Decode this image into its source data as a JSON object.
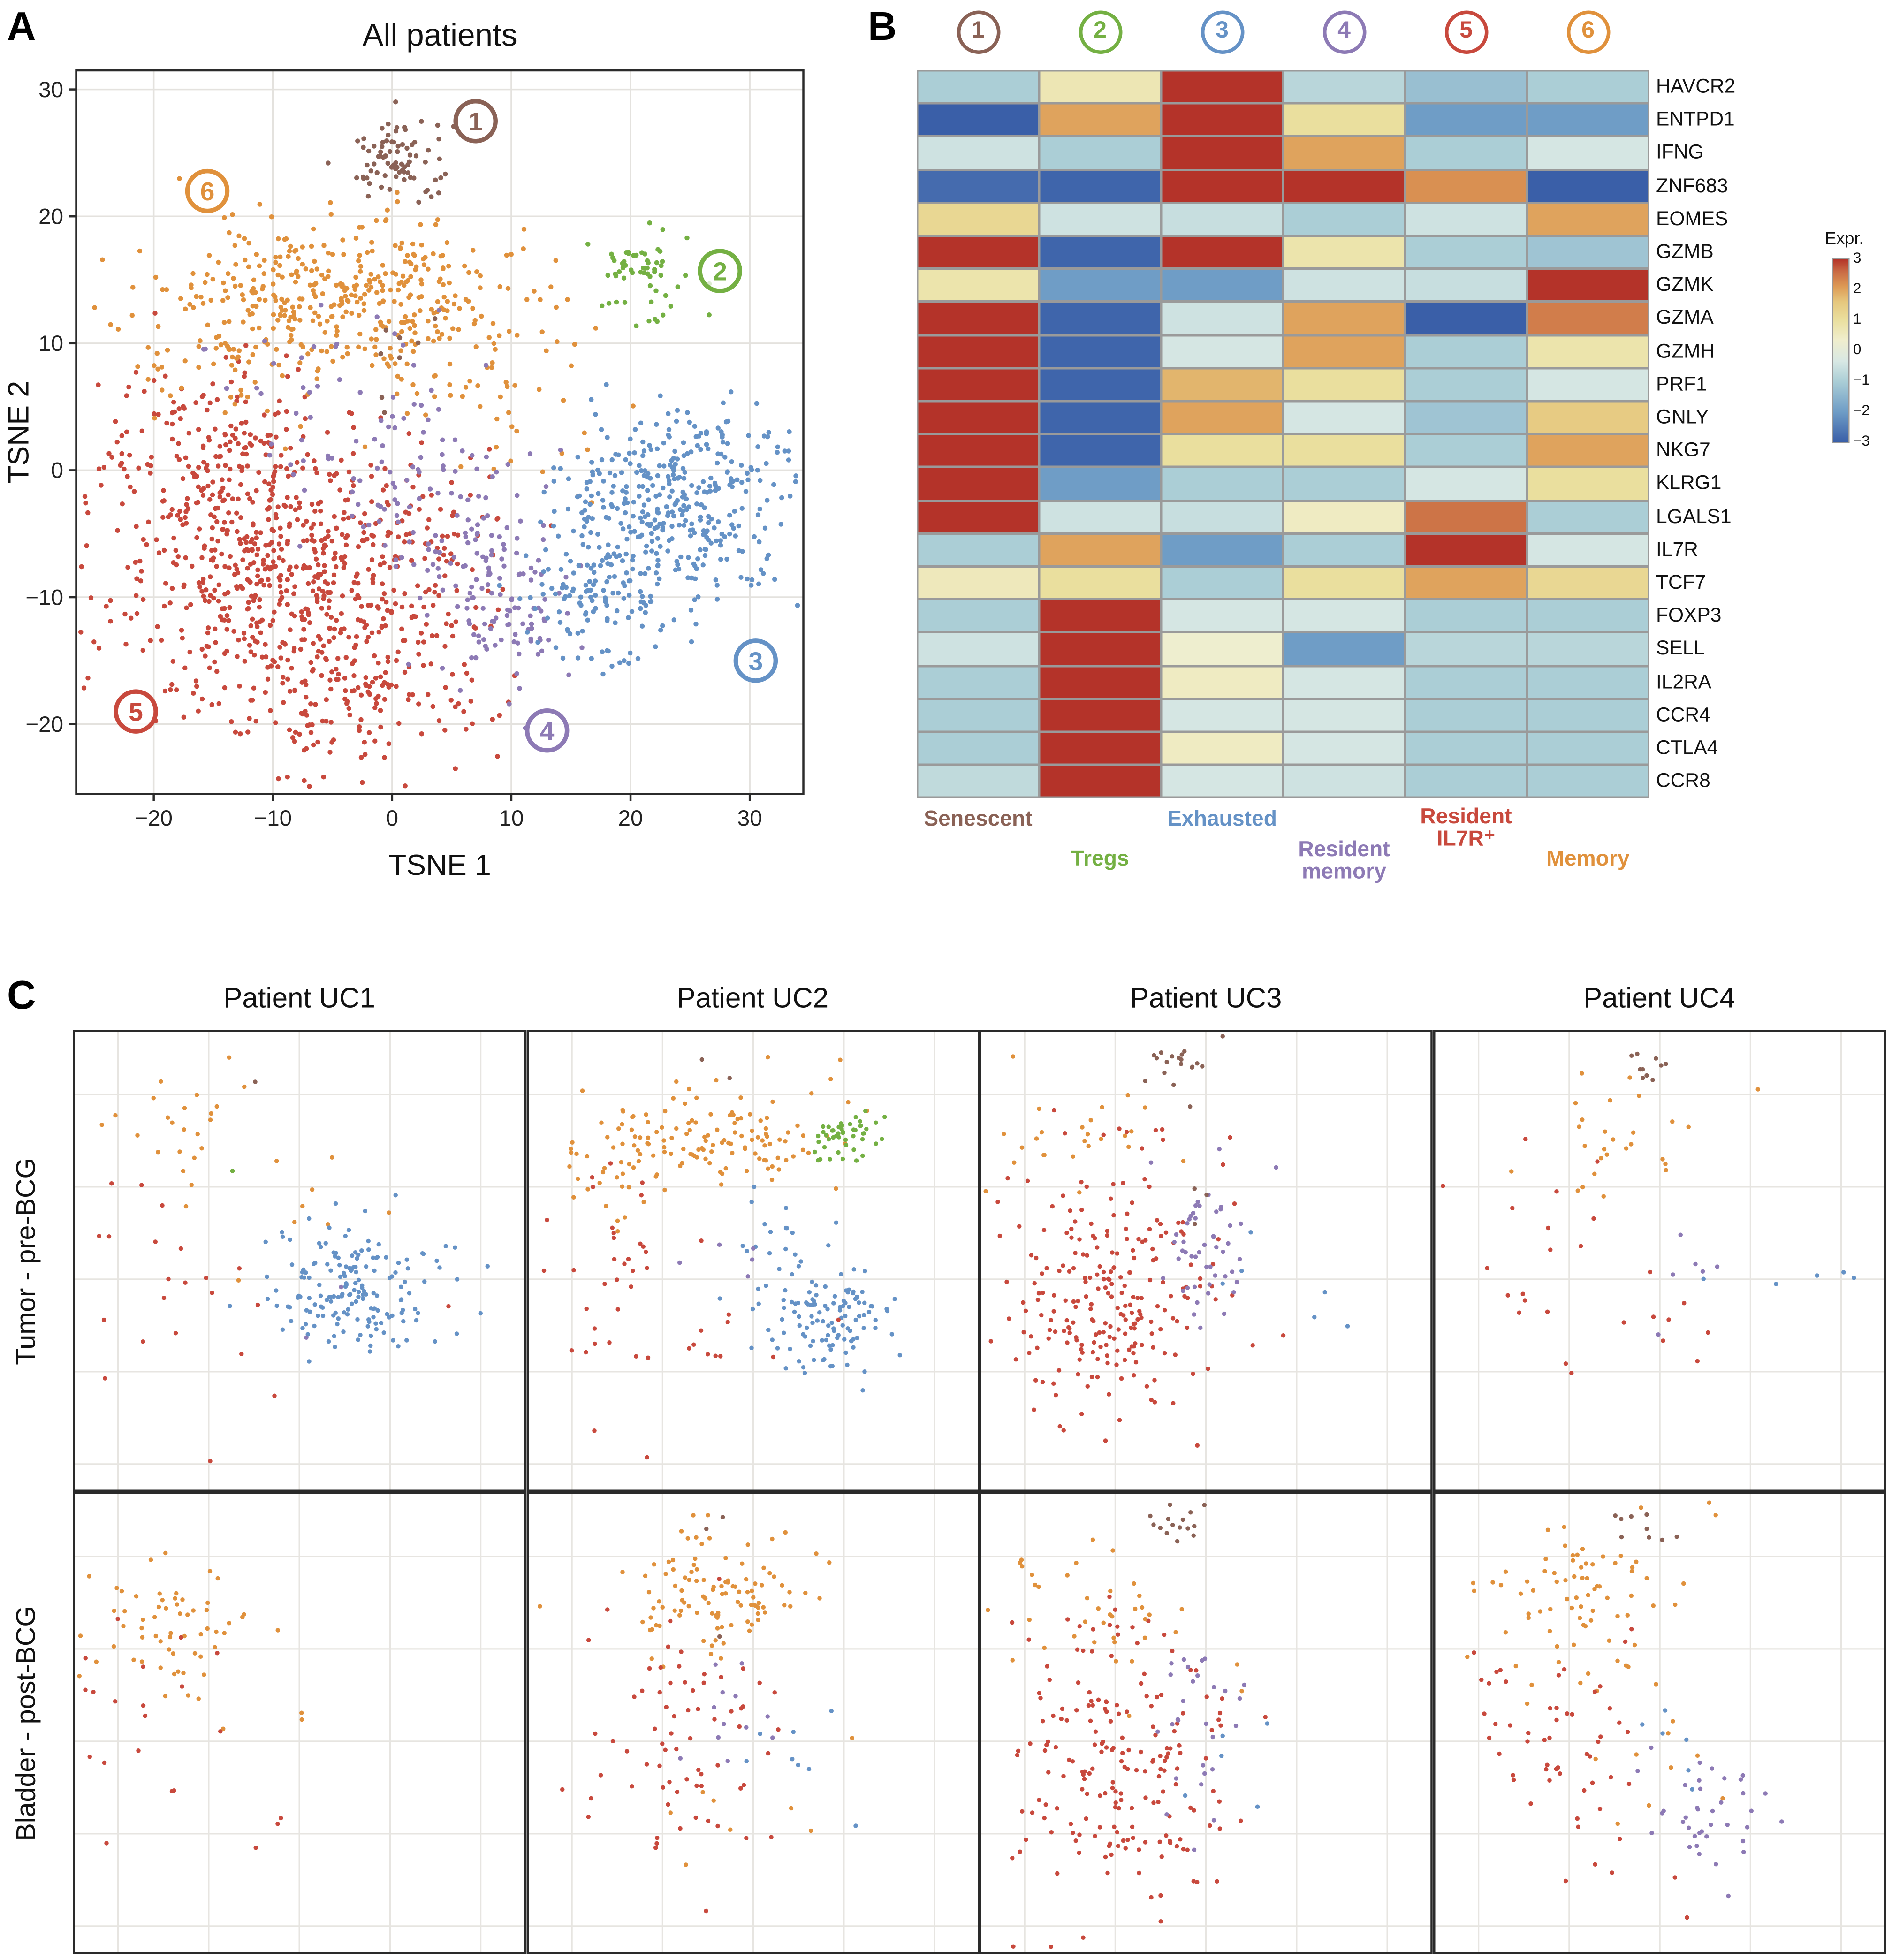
{
  "figure": {
    "panel_a_label": "A",
    "panel_b_label": "B",
    "panel_c_label": "C"
  },
  "clusters": [
    {
      "id": 1,
      "name": "Senescent",
      "color": "#8A6256"
    },
    {
      "id": 2,
      "name": "Tregs",
      "color": "#74B043"
    },
    {
      "id": 3,
      "name": "Exhausted",
      "color": "#6592C6"
    },
    {
      "id": 4,
      "name": "Resident memory",
      "color": "#8D7AB5"
    },
    {
      "id": 5,
      "name": "Resident IL7R⁺",
      "color": "#C8493D"
    },
    {
      "id": 6,
      "name": "Memory",
      "color": "#E0913C"
    }
  ],
  "colormap": {
    "stops": [
      [
        -3,
        "#3A5FA8"
      ],
      [
        -2,
        "#6F9DC6"
      ],
      [
        -1,
        "#ABCED6"
      ],
      [
        -0.35,
        "#D8E8E4"
      ],
      [
        0.35,
        "#F0EECD"
      ],
      [
        1,
        "#EADF9E"
      ],
      [
        1.6,
        "#E6C77D"
      ],
      [
        2.1,
        "#DD9A55"
      ],
      [
        2.6,
        "#C96A44"
      ],
      [
        3,
        "#B43329"
      ]
    ]
  },
  "chart_data": [
    {
      "id": "tsne_all_patients",
      "type": "scatter",
      "title": "All patients",
      "xlabel": "TSNE 1",
      "ylabel": "TSNE 2",
      "xlim": [
        -26.5,
        34.5
      ],
      "ylim": [
        -25.5,
        31.5
      ],
      "xticks": [
        -20,
        -10,
        0,
        10,
        20,
        30
      ],
      "yticks": [
        -20,
        -10,
        0,
        10,
        20,
        30
      ],
      "grid": true,
      "cluster_blobs": [
        {
          "cluster": 5,
          "cx": -9,
          "cy": -8,
          "sx": 7,
          "sy": 5.5,
          "n": 600
        },
        {
          "cluster": 5,
          "cx": -16,
          "cy": 1,
          "sx": 4.5,
          "sy": 4,
          "n": 170
        },
        {
          "cluster": 5,
          "cx": -3,
          "cy": -18,
          "sx": 5.5,
          "sy": 3,
          "n": 140
        },
        {
          "cluster": 5,
          "cx": 2,
          "cy": -6,
          "sx": 4,
          "sy": 4,
          "n": 60
        },
        {
          "cluster": 6,
          "cx": -4,
          "cy": 14.5,
          "sx": 7,
          "sy": 3.2,
          "n": 300
        },
        {
          "cluster": 6,
          "cx": -14,
          "cy": 11,
          "sx": 4.5,
          "sy": 3.5,
          "n": 100
        },
        {
          "cluster": 6,
          "cx": 4,
          "cy": 10,
          "sx": 5,
          "sy": 3.5,
          "n": 70
        },
        {
          "cluster": 6,
          "cx": 8,
          "cy": 5,
          "sx": 6,
          "sy": 4,
          "n": 25
        },
        {
          "cluster": 4,
          "cx": 9.5,
          "cy": -11,
          "sx": 2.8,
          "sy": 3.2,
          "n": 100
        },
        {
          "cluster": 4,
          "cx": 5,
          "cy": -4,
          "sx": 4,
          "sy": 3.5,
          "n": 80
        },
        {
          "cluster": 4,
          "cx": 0,
          "cy": 2,
          "sx": 5,
          "sy": 4,
          "n": 50
        },
        {
          "cluster": 4,
          "cx": -5,
          "cy": 8,
          "sx": 6,
          "sy": 3,
          "n": 15
        },
        {
          "cluster": 3,
          "cx": 23,
          "cy": -3.5,
          "sx": 4.8,
          "sy": 4,
          "n": 330
        },
        {
          "cluster": 3,
          "cx": 17.5,
          "cy": -10,
          "sx": 3,
          "sy": 3,
          "n": 110
        },
        {
          "cluster": 3,
          "cx": 26,
          "cy": 1,
          "sx": 4,
          "sy": 2.5,
          "n": 60
        },
        {
          "cluster": 1,
          "cx": 0,
          "cy": 9,
          "sx": 3,
          "sy": 3,
          "n": 8
        },
        {
          "cluster": 2,
          "cx": 20.5,
          "cy": 15.5,
          "sx": 1.9,
          "sy": 1.6,
          "n": 60
        },
        {
          "cluster": 1,
          "cx": 1,
          "cy": 24.7,
          "sx": 2.1,
          "sy": 1.7,
          "n": 80
        }
      ],
      "cluster_labels": [
        {
          "cluster": 1,
          "x": 7,
          "y": 27.5
        },
        {
          "cluster": 2,
          "x": 27.5,
          "y": 15.7
        },
        {
          "cluster": 3,
          "x": 30.5,
          "y": -15
        },
        {
          "cluster": 4,
          "x": 13,
          "y": -20.5
        },
        {
          "cluster": 5,
          "x": -21.5,
          "y": -19
        },
        {
          "cluster": 6,
          "x": -15.5,
          "y": 22
        }
      ]
    },
    {
      "id": "cluster_gene_heatmap",
      "type": "heatmap",
      "columns": [
        "1",
        "2",
        "3",
        "4",
        "5",
        "6"
      ],
      "rows": [
        "HAVCR2",
        "ENTPD1",
        "IFNG",
        "ZNF683",
        "EOMES",
        "GZMB",
        "GZMK",
        "GZMA",
        "GZMH",
        "PRF1",
        "GNLY",
        "NKG7",
        "KLRG1",
        "LGALS1",
        "IL7R",
        "TCF7",
        "FOXP3",
        "SELL",
        "IL2RA",
        "CCR4",
        "CTLA4",
        "CCR8"
      ],
      "values": [
        [
          -1,
          0.7,
          3,
          -0.8,
          -1.3,
          -1
        ],
        [
          -3,
          2,
          3,
          1,
          -2,
          -2
        ],
        [
          -0.5,
          -1,
          3,
          2,
          -1,
          -0.4
        ],
        [
          -2.8,
          -2.9,
          3,
          3,
          2.2,
          -3
        ],
        [
          1.2,
          -0.5,
          -0.6,
          -1,
          -0.5,
          2
        ],
        [
          3,
          -2.9,
          3,
          0.8,
          -1,
          -1.2
        ],
        [
          0.8,
          -2,
          -2,
          -0.5,
          -0.6,
          3
        ],
        [
          3,
          -2.9,
          -0.5,
          2,
          -3,
          2.4
        ],
        [
          3,
          -2.9,
          -0.4,
          2,
          -1,
          0.8
        ],
        [
          3,
          -2.9,
          1.8,
          1,
          -1,
          -0.4
        ],
        [
          3,
          -2.9,
          2,
          -0.4,
          -1.2,
          1.5
        ],
        [
          3,
          -2.9,
          1,
          1,
          -1,
          2
        ],
        [
          3,
          -2,
          -1,
          -1,
          -0.4,
          1
        ],
        [
          3,
          -0.5,
          -0.6,
          0.5,
          2.5,
          -1
        ],
        [
          -1,
          2,
          -2,
          -1,
          3,
          -0.4
        ],
        [
          0.6,
          1,
          -1,
          1,
          2,
          1.2
        ],
        [
          -1,
          3,
          -0.4,
          -0.4,
          -1,
          -1
        ],
        [
          -0.5,
          3,
          0.3,
          -2,
          -0.8,
          -0.8
        ],
        [
          -1,
          3,
          0.5,
          -0.4,
          -1,
          -1
        ],
        [
          -1,
          3,
          -0.4,
          -0.4,
          -1,
          -1
        ],
        [
          -1,
          3,
          0.5,
          -0.4,
          -1,
          -1
        ],
        [
          -0.7,
          3,
          -0.4,
          -0.5,
          -1,
          -1
        ]
      ],
      "legend": {
        "title": "Expr.",
        "min": -3,
        "max": 3,
        "ticks": [
          3,
          2,
          1,
          0,
          -1,
          -2,
          -3
        ]
      },
      "column_footnotes": [
        {
          "col": 0,
          "cluster": 1,
          "tier": "upper",
          "lines": [
            "Senescent"
          ]
        },
        {
          "col": 1,
          "cluster": 2,
          "tier": "lower",
          "lines": [
            "Tregs"
          ]
        },
        {
          "col": 2,
          "cluster": 3,
          "tier": "upper",
          "lines": [
            "Exhausted"
          ]
        },
        {
          "col": 3,
          "cluster": 4,
          "tier": "mid",
          "lines": [
            "Resident",
            "memory"
          ]
        },
        {
          "col": 4,
          "cluster": 5,
          "tier": "upper2",
          "lines": [
            "Resident",
            "IL7R⁺"
          ]
        },
        {
          "col": 5,
          "cluster": 6,
          "tier": "lower",
          "lines": [
            "Memory"
          ]
        }
      ]
    },
    {
      "id": "per_patient_tsne",
      "type": "scatter-grid",
      "col_titles": [
        "Patient UC1",
        "Patient UC2",
        "Patient UC3",
        "Patient UC4"
      ],
      "row_titles": [
        "Tumor - pre-BCG",
        "Bladder - post-BCG"
      ],
      "plots": [
        {
          "row": 0,
          "col": 0,
          "blobs": [
            {
              "c": 6,
              "cx": 22,
              "cy": 22,
              "sx": 10,
              "sy": 9,
              "n": 24
            },
            {
              "c": 6,
              "cx": 45,
              "cy": 38,
              "sx": 12,
              "sy": 8,
              "n": 8
            },
            {
              "c": 5,
              "cx": 16,
              "cy": 50,
              "sx": 10,
              "sy": 16,
              "n": 16
            },
            {
              "c": 5,
              "cx": 45,
              "cy": 62,
              "sx": 18,
              "sy": 12,
              "n": 6
            },
            {
              "c": 3,
              "cx": 62,
              "cy": 56,
              "sx": 9,
              "sy": 7,
              "n": 170
            },
            {
              "c": 3,
              "cx": 84,
              "cy": 50,
              "sx": 4,
              "sy": 4,
              "n": 4
            },
            {
              "c": 4,
              "cx": 55,
              "cy": 60,
              "sx": 4,
              "sy": 4,
              "n": 2
            },
            {
              "c": 1,
              "cx": 42,
              "cy": 12,
              "sx": 1,
              "sy": 1,
              "n": 1
            },
            {
              "c": 2,
              "cx": 36,
              "cy": 30,
              "sx": 1,
              "sy": 1,
              "n": 1
            }
          ]
        },
        {
          "row": 0,
          "col": 1,
          "blobs": [
            {
              "c": 6,
              "cx": 40,
              "cy": 24,
              "sx": 14,
              "sy": 5,
              "n": 120
            },
            {
              "c": 6,
              "cx": 18,
              "cy": 30,
              "sx": 5,
              "sy": 6,
              "n": 25
            },
            {
              "c": 6,
              "cx": 55,
              "cy": 12,
              "sx": 8,
              "sy": 4,
              "n": 6
            },
            {
              "c": 2,
              "cx": 70,
              "cy": 23,
              "sx": 3.5,
              "sy": 3,
              "n": 48
            },
            {
              "c": 3,
              "cx": 66,
              "cy": 62,
              "sx": 7,
              "sy": 6,
              "n": 120
            },
            {
              "c": 3,
              "cx": 58,
              "cy": 45,
              "sx": 5,
              "sy": 5,
              "n": 15
            },
            {
              "c": 5,
              "cx": 16,
              "cy": 48,
              "sx": 6,
              "sy": 14,
              "n": 30
            },
            {
              "c": 5,
              "cx": 38,
              "cy": 70,
              "sx": 10,
              "sy": 12,
              "n": 14
            },
            {
              "c": 4,
              "cx": 48,
              "cy": 52,
              "sx": 6,
              "sy": 6,
              "n": 5
            },
            {
              "c": 1,
              "cx": 42,
              "cy": 7,
              "sx": 3,
              "sy": 2,
              "n": 2
            }
          ]
        },
        {
          "row": 0,
          "col": 2,
          "blobs": [
            {
              "c": 1,
              "cx": 44,
              "cy": 8,
              "sx": 4,
              "sy": 3,
              "n": 20
            },
            {
              "c": 5,
              "cx": 28,
              "cy": 58,
              "sx": 12,
              "sy": 13,
              "n": 230
            },
            {
              "c": 5,
              "cx": 35,
              "cy": 25,
              "sx": 10,
              "sy": 6,
              "n": 12
            },
            {
              "c": 4,
              "cx": 50,
              "cy": 46,
              "sx": 5,
              "sy": 8,
              "n": 50
            },
            {
              "c": 6,
              "cx": 22,
              "cy": 22,
              "sx": 10,
              "sy": 7,
              "n": 26
            },
            {
              "c": 3,
              "cx": 62,
              "cy": 52,
              "sx": 8,
              "sy": 8,
              "n": 6
            },
            {
              "c": 1,
              "cx": 48,
              "cy": 35,
              "sx": 3,
              "sy": 3,
              "n": 3
            }
          ]
        },
        {
          "row": 0,
          "col": 3,
          "blobs": [
            {
              "c": 1,
              "cx": 47,
              "cy": 8,
              "sx": 3,
              "sy": 2.5,
              "n": 10
            },
            {
              "c": 6,
              "cx": 40,
              "cy": 25,
              "sx": 11,
              "sy": 9,
              "n": 28
            },
            {
              "c": 5,
              "cx": 25,
              "cy": 48,
              "sx": 12,
              "sy": 13,
              "n": 22
            },
            {
              "c": 4,
              "cx": 58,
              "cy": 56,
              "sx": 7,
              "sy": 6,
              "n": 6
            },
            {
              "c": 3,
              "cx": 80,
              "cy": 53,
              "sx": 8,
              "sy": 4,
              "n": 5
            },
            {
              "c": 5,
              "cx": 55,
              "cy": 70,
              "sx": 8,
              "sy": 6,
              "n": 4
            }
          ]
        },
        {
          "row": 1,
          "col": 0,
          "blobs": [
            {
              "c": 6,
              "cx": 22,
              "cy": 28,
              "sx": 9,
              "sy": 9,
              "n": 55
            },
            {
              "c": 6,
              "cx": 42,
              "cy": 40,
              "sx": 10,
              "sy": 8,
              "n": 8
            },
            {
              "c": 5,
              "cx": 15,
              "cy": 52,
              "sx": 10,
              "sy": 12,
              "n": 20
            },
            {
              "c": 5,
              "cx": 35,
              "cy": 72,
              "sx": 8,
              "sy": 8,
              "n": 4
            }
          ]
        },
        {
          "row": 1,
          "col": 1,
          "blobs": [
            {
              "c": 6,
              "cx": 40,
              "cy": 22,
              "sx": 11,
              "sy": 7,
              "n": 110
            },
            {
              "c": 6,
              "cx": 45,
              "cy": 72,
              "sx": 10,
              "sy": 8,
              "n": 8
            },
            {
              "c": 5,
              "cx": 36,
              "cy": 55,
              "sx": 11,
              "sy": 14,
              "n": 70
            },
            {
              "c": 4,
              "cx": 45,
              "cy": 50,
              "sx": 6,
              "sy": 8,
              "n": 12
            },
            {
              "c": 3,
              "cx": 58,
              "cy": 58,
              "sx": 8,
              "sy": 8,
              "n": 8
            },
            {
              "c": 1,
              "cx": 42,
              "cy": 6,
              "sx": 2,
              "sy": 2,
              "n": 2
            },
            {
              "c": 1,
              "cx": 38,
              "cy": 32,
              "sx": 2,
              "sy": 2,
              "n": 1
            }
          ]
        },
        {
          "row": 1,
          "col": 2,
          "blobs": [
            {
              "c": 1,
              "cx": 43,
              "cy": 6,
              "sx": 3.5,
              "sy": 2.5,
              "n": 15
            },
            {
              "c": 5,
              "cx": 30,
              "cy": 60,
              "sx": 12,
              "sy": 14,
              "n": 185
            },
            {
              "c": 5,
              "cx": 30,
              "cy": 30,
              "sx": 8,
              "sy": 5,
              "n": 10
            },
            {
              "c": 6,
              "cx": 28,
              "cy": 27,
              "sx": 13,
              "sy": 9,
              "n": 40
            },
            {
              "c": 4,
              "cx": 48,
              "cy": 50,
              "sx": 6,
              "sy": 10,
              "n": 28
            },
            {
              "c": 3,
              "cx": 56,
              "cy": 62,
              "sx": 6,
              "sy": 6,
              "n": 5
            }
          ]
        },
        {
          "row": 1,
          "col": 3,
          "blobs": [
            {
              "c": 1,
              "cx": 46,
              "cy": 6,
              "sx": 3,
              "sy": 2.5,
              "n": 9
            },
            {
              "c": 6,
              "cx": 36,
              "cy": 25,
              "sx": 13,
              "sy": 11,
              "n": 80
            },
            {
              "c": 6,
              "cx": 50,
              "cy": 55,
              "sx": 8,
              "sy": 8,
              "n": 8
            },
            {
              "c": 5,
              "cx": 25,
              "cy": 50,
              "sx": 11,
              "sy": 13,
              "n": 50
            },
            {
              "c": 5,
              "cx": 45,
              "cy": 85,
              "sx": 8,
              "sy": 5,
              "n": 5
            },
            {
              "c": 4,
              "cx": 60,
              "cy": 70,
              "sx": 8,
              "sy": 6,
              "n": 38
            },
            {
              "c": 3,
              "cx": 52,
              "cy": 58,
              "sx": 6,
              "sy": 6,
              "n": 6
            }
          ]
        }
      ]
    }
  ]
}
